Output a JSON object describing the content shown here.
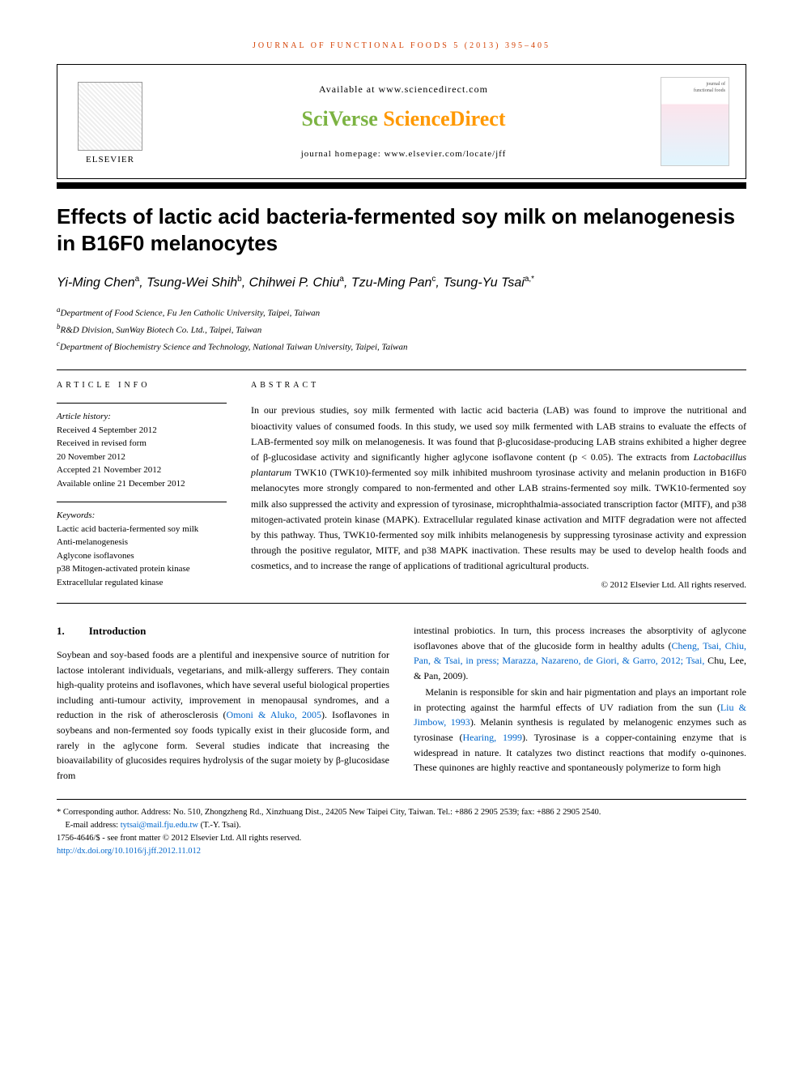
{
  "journal_header": "JOURNAL OF FUNCTIONAL FOODS 5 (2013) 395–405",
  "header": {
    "available_at": "Available at www.sciencedirect.com",
    "brand_sci": "SciVerse ",
    "brand_direct": "ScienceDirect",
    "homepage": "journal homepage: www.elsevier.com/locate/jff",
    "publisher": "ELSEVIER",
    "cover_line1": "journal of",
    "cover_line2": "functional foods"
  },
  "title": "Effects of lactic acid bacteria-fermented soy milk on melanogenesis in B16F0 melanocytes",
  "authors_html": "Yi-Ming Chen<sup>a</sup>, Tsung-Wei Shih<sup>b</sup>, Chihwei P. Chiu<sup>a</sup>, Tzu-Ming Pan<sup>c</sup>, Tsung-Yu Tsai<sup>a,*</sup>",
  "affiliations": {
    "a": "Department of Food Science, Fu Jen Catholic University, Taipei, Taiwan",
    "b": "R&D Division, SunWay Biotech Co. Ltd., Taipei, Taiwan",
    "c": "Department of Biochemistry Science and Technology, National Taiwan University, Taipei, Taiwan"
  },
  "labels": {
    "article_info": "ARTICLE INFO",
    "abstract": "ABSTRACT",
    "history_title": "Article history:",
    "keywords_title": "Keywords:"
  },
  "history": {
    "received": "Received 4 September 2012",
    "revised1": "Received in revised form",
    "revised2": "20 November 2012",
    "accepted": "Accepted 21 November 2012",
    "online": "Available online 21 December 2012"
  },
  "keywords": [
    "Lactic acid bacteria-fermented soy milk",
    "Anti-melanogenesis",
    "Aglycone isoflavones",
    "p38 Mitogen-activated protein kinase",
    "Extracellular regulated kinase"
  ],
  "abstract": "In our previous studies, soy milk fermented with lactic acid bacteria (LAB) was found to improve the nutritional and bioactivity values of consumed foods. In this study, we used soy milk fermented with LAB strains to evaluate the effects of LAB-fermented soy milk on melanogenesis. It was found that β-glucosidase-producing LAB strains exhibited a higher degree of β-glucosidase activity and significantly higher aglycone isoflavone content (p < 0.05). The extracts from Lactobacillus plantarum TWK10 (TWK10)-fermented soy milk inhibited mushroom tyrosinase activity and melanin production in B16F0 melanocytes more strongly compared to non-fermented and other LAB strains-fermented soy milk. TWK10-fermented soy milk also suppressed the activity and expression of tyrosinase, microphthalmia-associated transcription factor (MITF), and p38 mitogen-activated protein kinase (MAPK). Extracellular regulated kinase activation and MITF degradation were not affected by this pathway. Thus, TWK10-fermented soy milk inhibits melanogenesis by suppressing tyrosinase activity and expression through the positive regulator, MITF, and p38 MAPK inactivation. These results may be used to develop health foods and cosmetics, and to increase the range of applications of traditional agricultural products.",
  "copyright": "© 2012 Elsevier Ltd. All rights reserved.",
  "intro": {
    "num": "1.",
    "heading": "Introduction",
    "col1": "Soybean and soy-based foods are a plentiful and inexpensive source of nutrition for lactose intolerant individuals, vegetarians, and milk-allergy sufferers. They contain high-quality proteins and isoflavones, which have several useful biological properties including anti-tumour activity, improvement in menopausal syndromes, and a reduction in the risk of atherosclerosis (",
    "col1_ref": "Omoni & Aluko, 2005",
    "col1_b": "). Isoflavones in soybeans and non-fermented soy foods typically exist in their glucoside form, and rarely in the aglycone form. Several studies indicate that increasing the bioavailability of glucosides requires hydrolysis of the sugar moiety by β-glucosidase from",
    "col2_a": "intestinal probiotics. In turn, this process increases the absorptivity of aglycone isoflavones above that of the glucoside form in healthy adults (",
    "col2_ref1": "Cheng, Tsai, Chiu, Pan, & Tsai, in press; Marazza, Nazareno, de Giori, & Garro, 2012; Tsai,",
    "col2_a2": " Chu, Lee, & Pan, 2009).",
    "col2_p2a": "Melanin is responsible for skin and hair pigmentation and plays an important role in protecting against the harmful effects of UV radiation from the sun (",
    "col2_ref2": "Liu & Jimbow, 1993",
    "col2_p2b": "). Melanin synthesis is regulated by melanogenic enzymes such as tyrosinase (",
    "col2_ref3": "Hearing, 1999",
    "col2_p2c": "). Tyrosinase is a copper-containing enzyme that is widespread in nature. It catalyzes two distinct reactions that modify o-quinones. These quinones are highly reactive and spontaneously polymerize to form high"
  },
  "footnotes": {
    "corresponding": "* Corresponding author. Address: No. 510, Zhongzheng Rd., Xinzhuang Dist., 24205 New Taipei City, Taiwan. Tel.: +886 2 2905 2539; fax: +886 2 2905 2540.",
    "email_label": "E-mail address: ",
    "email": "tytsai@mail.fju.edu.tw",
    "email_suffix": " (T.-Y. Tsai).",
    "issn": "1756-4646/$ - see front matter © 2012 Elsevier Ltd. All rights reserved.",
    "doi": "http://dx.doi.org/10.1016/j.jff.2012.11.012"
  },
  "colors": {
    "orange": "#d43f00",
    "link_blue": "#0066cc",
    "sci_green": "#7cb342",
    "direct_orange": "#ff9800"
  }
}
